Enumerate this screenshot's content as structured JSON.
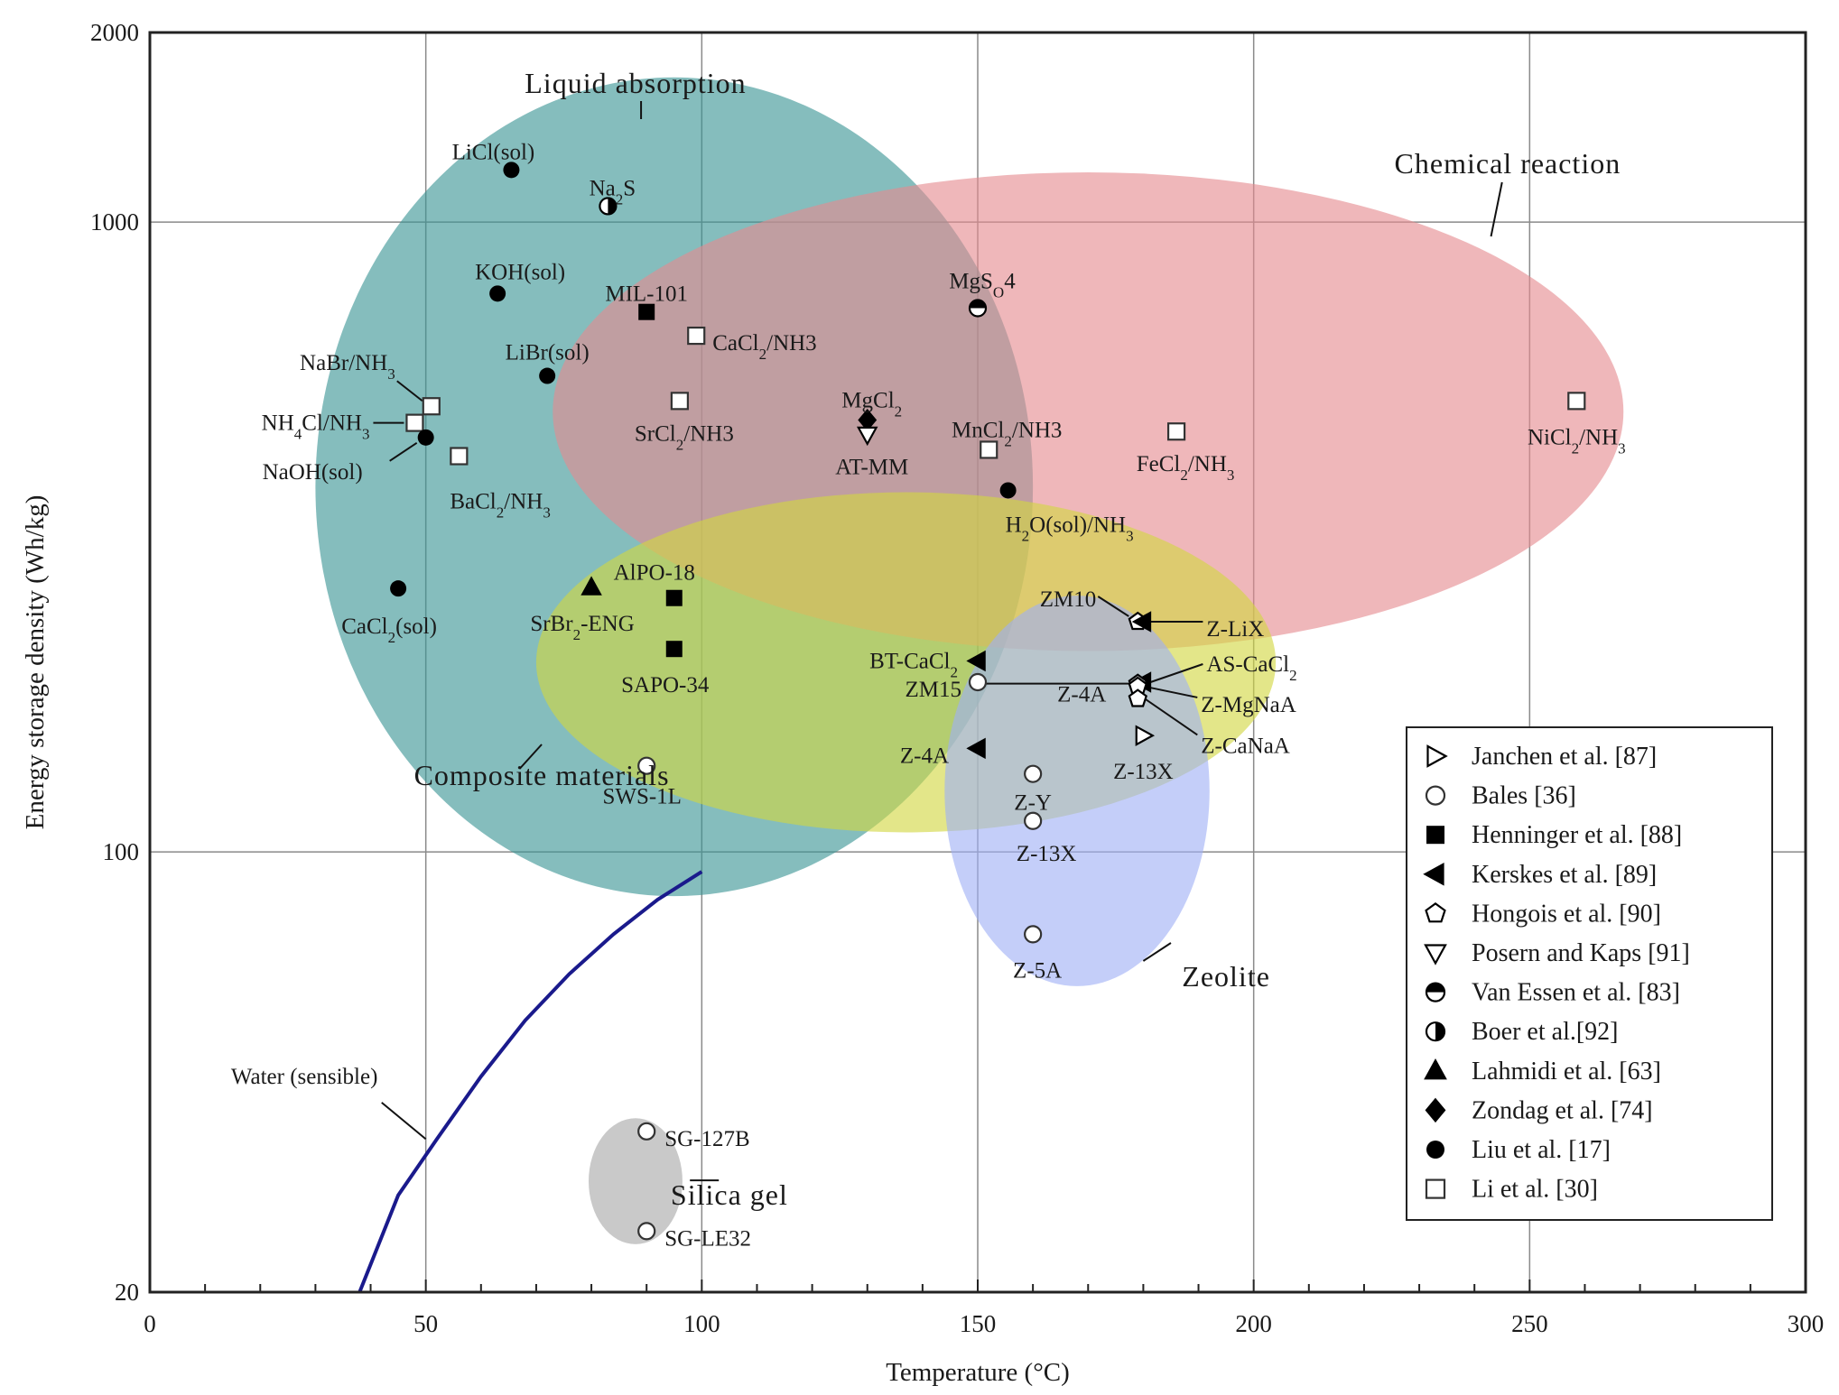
{
  "chart_data": {
    "type": "scatter",
    "xlabel": "Temperature (°C)",
    "ylabel": "Energy storage density (Wh/kg)",
    "xlim": [
      0,
      300
    ],
    "ylim": [
      20,
      2000
    ],
    "yscale": "log",
    "grid": true,
    "xticks": [
      "0",
      "50",
      "100",
      "150",
      "200",
      "250",
      "300"
    ],
    "yticks": [
      "20",
      "100",
      "1000",
      "2000"
    ],
    "regions": [
      {
        "name": "Liquid absorption",
        "cx": 95,
        "cy": 380,
        "rx_deg": 65,
        "log_ry": 0.65,
        "color": "#3a9595"
      },
      {
        "name": "Chemical reaction",
        "cx": 170,
        "cy": 500,
        "rx_deg": 97,
        "log_ry": 0.38,
        "color": "#e58a90"
      },
      {
        "name": "Composite materials",
        "cx": 137,
        "cy": 200,
        "rx_deg": 67,
        "log_ry": 0.27,
        "color": "#d2d640"
      },
      {
        "name": "Zeolite",
        "cx": 168,
        "cy": 125,
        "rx_deg": 24,
        "log_ry": 0.31,
        "color": "#9fb0f5"
      },
      {
        "name": "Silica gel",
        "cx": 88,
        "cy": 30,
        "rx_deg": 8.5,
        "log_ry": 0.1,
        "color": "#a8a8a8"
      }
    ],
    "points": [
      {
        "label": "LiCl(sol)",
        "x": 65.5,
        "y": 1210,
        "marker": "circle-filled"
      },
      {
        "label": "Na2S",
        "x": 83,
        "y": 1060,
        "marker": "circle-half-v"
      },
      {
        "label": "KOH(sol)",
        "x": 63,
        "y": 770,
        "marker": "circle-filled"
      },
      {
        "label": "MIL-101",
        "x": 90,
        "y": 720,
        "marker": "square-filled"
      },
      {
        "label": "CaCl2/NH3",
        "x": 99,
        "y": 660,
        "marker": "square-open"
      },
      {
        "label": "MgSO4",
        "x": 150,
        "y": 730,
        "marker": "circle-half-h"
      },
      {
        "label": "NaBr/NH3",
        "x": 51,
        "y": 510,
        "marker": "square-open"
      },
      {
        "label": "LiBr(sol)",
        "x": 72,
        "y": 570,
        "marker": "circle-filled"
      },
      {
        "label": "SrCl2/NH3",
        "x": 96,
        "y": 520,
        "marker": "square-open"
      },
      {
        "label": "MgCl2",
        "x": 130,
        "y": 485,
        "marker": "diamond-filled"
      },
      {
        "label": "AT-MM",
        "x": 130,
        "y": 460,
        "marker": "triangle-down-open"
      },
      {
        "label": "MnCl2/NH3",
        "x": 152,
        "y": 435,
        "marker": "square-open"
      },
      {
        "label": "NiCl2/NH3",
        "x": 258.5,
        "y": 520,
        "marker": "square-open"
      },
      {
        "label": "NH4Cl/NH3",
        "x": 48,
        "y": 480,
        "marker": "square-open"
      },
      {
        "label": "NaOH(sol)",
        "x": 50,
        "y": 455,
        "marker": "circle-filled"
      },
      {
        "label": "BaCl2/NH3",
        "x": 56,
        "y": 425,
        "marker": "square-open"
      },
      {
        "label": "FeCl2/NH3",
        "x": 186,
        "y": 465,
        "marker": "square-open"
      },
      {
        "label": "H2O(sol)/NH3",
        "x": 155.5,
        "y": 375,
        "marker": "circle-filled"
      },
      {
        "label": "CaCl2(sol)",
        "x": 45,
        "y": 262,
        "marker": "circle-filled"
      },
      {
        "label": "SrBr2-ENG",
        "x": 80,
        "y": 263,
        "marker": "triangle-up-filled"
      },
      {
        "label": "AlPO-18",
        "x": 95,
        "y": 253,
        "marker": "square-filled"
      },
      {
        "label": "SAPO-34",
        "x": 95,
        "y": 210,
        "marker": "square-filled"
      },
      {
        "label": "BT-CaCl2",
        "x": 150,
        "y": 201,
        "marker": "triangle-left-filled"
      },
      {
        "label": "ZM15",
        "x": 150,
        "y": 186,
        "marker": "circle-open"
      },
      {
        "label": "ZM10",
        "x": 179,
        "y": 232,
        "marker": "pentagon-open"
      },
      {
        "label": "Z-LiX",
        "x": 180,
        "y": 232,
        "marker": "triangle-left-filled"
      },
      {
        "label": "AS-CaCl2",
        "x": 180,
        "y": 186,
        "marker": "triangle-left-filled"
      },
      {
        "label": "Z-4A",
        "x": 179,
        "y": 185,
        "marker": "pentagon-open"
      },
      {
        "label": "Z-MgNaA",
        "x": 179,
        "y": 183,
        "marker": "pentagon-open"
      },
      {
        "label": "Z-CaNaA",
        "x": 179,
        "y": 175,
        "marker": "pentagon-open"
      },
      {
        "label": "Z-4A",
        "x": 150,
        "y": 146,
        "marker": "triangle-left-filled"
      },
      {
        "label": "Z-13X",
        "x": 180,
        "y": 153,
        "marker": "triangle-right-open"
      },
      {
        "label": "Z-Y",
        "x": 160,
        "y": 133,
        "marker": "circle-open"
      },
      {
        "label": "Z-13X",
        "x": 160,
        "y": 112,
        "marker": "circle-open"
      },
      {
        "label": "Z-5A",
        "x": 160,
        "y": 74,
        "marker": "circle-open"
      },
      {
        "label": "SWS-1L",
        "x": 90,
        "y": 137,
        "marker": "circle-open"
      },
      {
        "label": "SG-127B",
        "x": 90,
        "y": 36,
        "marker": "circle-open"
      },
      {
        "label": "SG-LE32",
        "x": 90,
        "y": 25,
        "marker": "circle-open"
      }
    ],
    "curve": {
      "label": "Water (sensible)",
      "x": [
        38,
        45,
        52,
        60,
        68,
        76,
        84,
        92,
        100
      ],
      "y": [
        20,
        28.5,
        35,
        44,
        54,
        64,
        74,
        84,
        93
      ],
      "color": "#1a1a8c"
    },
    "legend": {
      "position": "bottom-right",
      "entries": [
        {
          "label": "Janchen et al. [87]",
          "marker": "triangle-right-open"
        },
        {
          "label": "Bales [36]",
          "marker": "circle-open"
        },
        {
          "label": "Henninger et al. [88]",
          "marker": "square-filled"
        },
        {
          "label": "Kerskes et al. [89]",
          "marker": "triangle-left-filled"
        },
        {
          "label": "Hongois et al. [90]",
          "marker": "pentagon-open"
        },
        {
          "label": "Posern and Kaps [91]",
          "marker": "triangle-down-open"
        },
        {
          "label": "Van Essen et al. [83]",
          "marker": "circle-half-h"
        },
        {
          "label": "Boer et al.[92]",
          "marker": "circle-half-v"
        },
        {
          "label": "Lahmidi et al. [63]",
          "marker": "triangle-up-filled"
        },
        {
          "label": "Zondag et al. [74]",
          "marker": "diamond-filled"
        },
        {
          "label": "Liu et al. [17]",
          "marker": "circle-filled"
        },
        {
          "label": "Li et al. [30]",
          "marker": "square-open"
        }
      ]
    }
  }
}
